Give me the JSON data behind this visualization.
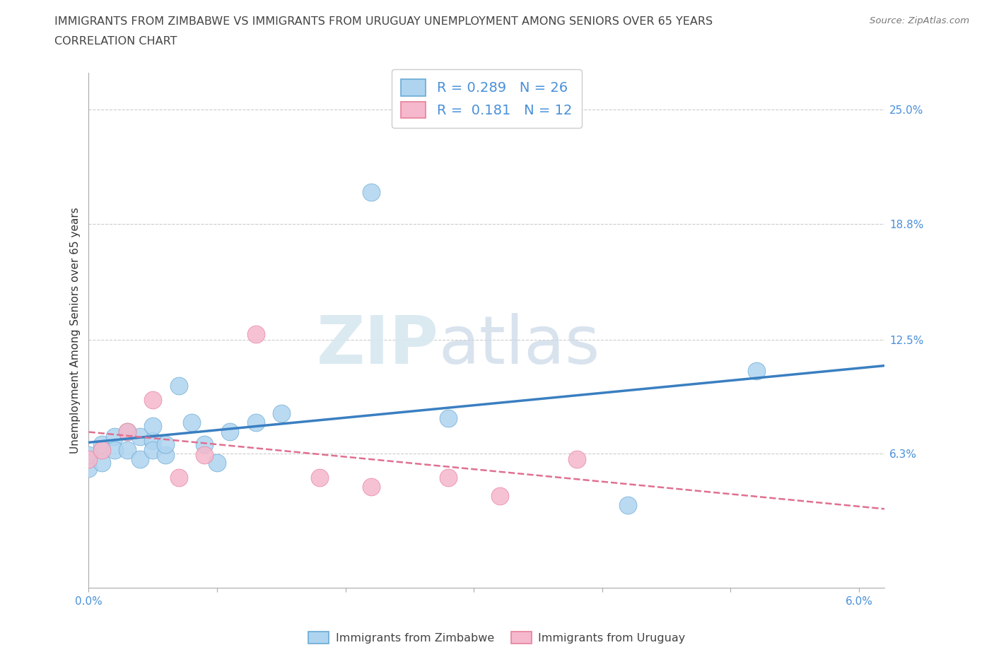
{
  "title_line1": "IMMIGRANTS FROM ZIMBABWE VS IMMIGRANTS FROM URUGUAY UNEMPLOYMENT AMONG SENIORS OVER 65 YEARS",
  "title_line2": "CORRELATION CHART",
  "source": "Source: ZipAtlas.com",
  "ylabel": "Unemployment Among Seniors over 65 years",
  "watermark_zip": "ZIP",
  "watermark_atlas": "atlas",
  "xlim": [
    0.0,
    0.062
  ],
  "ylim": [
    -0.01,
    0.27
  ],
  "xticks": [
    0.0,
    0.01,
    0.02,
    0.03,
    0.04,
    0.05,
    0.06
  ],
  "xticklabels": [
    "0.0%",
    "",
    "",
    "",
    "",
    "",
    "6.0%"
  ],
  "ytick_positions": [
    0.063,
    0.125,
    0.188,
    0.25
  ],
  "ytick_labels": [
    "6.3%",
    "12.5%",
    "18.8%",
    "25.0%"
  ],
  "zimbabwe_color": "#aed4f0",
  "uruguay_color": "#f5b8cc",
  "zimbabwe_edge_color": "#6aaad4",
  "uruguay_edge_color": "#e8809a",
  "zimbabwe_line_color": "#3a7fc1",
  "uruguay_line_color": "#e07090",
  "R_zimbabwe": 0.289,
  "N_zimbabwe": 26,
  "R_uruguay": 0.181,
  "N_uruguay": 12,
  "zimbabwe_x": [
    0.0,
    0.0,
    0.001,
    0.001,
    0.002,
    0.002,
    0.003,
    0.003,
    0.004,
    0.004,
    0.005,
    0.005,
    0.005,
    0.006,
    0.006,
    0.007,
    0.008,
    0.009,
    0.01,
    0.011,
    0.013,
    0.015,
    0.022,
    0.028,
    0.042,
    0.052
  ],
  "zimbabwe_y": [
    0.055,
    0.062,
    0.068,
    0.058,
    0.072,
    0.065,
    0.075,
    0.065,
    0.072,
    0.06,
    0.07,
    0.078,
    0.065,
    0.062,
    0.068,
    0.1,
    0.08,
    0.068,
    0.058,
    0.075,
    0.08,
    0.085,
    0.205,
    0.082,
    0.035,
    0.108
  ],
  "uruguay_x": [
    0.0,
    0.001,
    0.003,
    0.005,
    0.007,
    0.009,
    0.013,
    0.018,
    0.022,
    0.028,
    0.032,
    0.038
  ],
  "uruguay_y": [
    0.06,
    0.065,
    0.075,
    0.092,
    0.05,
    0.062,
    0.128,
    0.05,
    0.045,
    0.05,
    0.04,
    0.06
  ],
  "title_fontsize": 11.5,
  "axis_label_fontsize": 11,
  "tick_fontsize": 11,
  "legend_fontsize": 14
}
